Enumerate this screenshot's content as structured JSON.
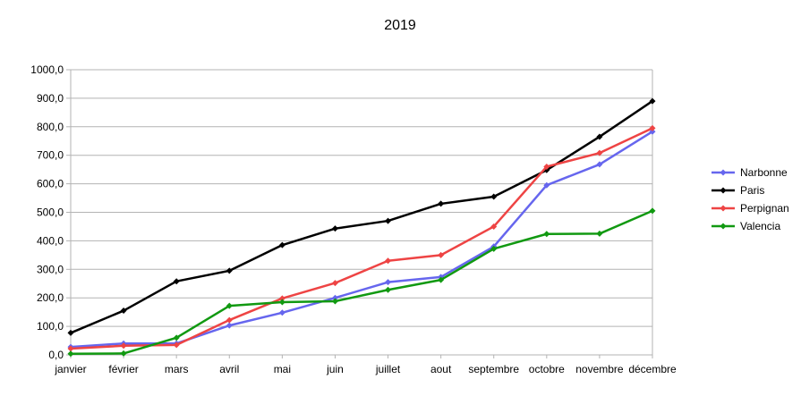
{
  "chart_data": {
    "type": "line",
    "title": "2019",
    "xlabel": "",
    "ylabel": "",
    "categories": [
      "janvier",
      "février",
      "mars",
      "avril",
      "mai",
      "juin",
      "juillet",
      "aout",
      "septembre",
      "octobre",
      "novembre",
      "décembre"
    ],
    "ylim": [
      0,
      1000
    ],
    "ytick_labels": [
      "0,0",
      "100,0",
      "200,0",
      "300,0",
      "400,0",
      "500,0",
      "600,0",
      "700,0",
      "800,0",
      "900,0",
      "1000,0"
    ],
    "grid": true,
    "legend_position": "right",
    "series": [
      {
        "name": "Narbonne",
        "color": "#6666ee",
        "values": [
          28,
          40,
          40,
          103,
          148,
          200,
          255,
          273,
          380,
          595,
          668,
          783
        ]
      },
      {
        "name": "Paris",
        "color": "#000000",
        "values": [
          77,
          155,
          258,
          295,
          385,
          443,
          470,
          530,
          555,
          648,
          765,
          890
        ]
      },
      {
        "name": "Perpignan",
        "color": "#ee4444",
        "values": [
          22,
          32,
          35,
          122,
          198,
          252,
          330,
          350,
          450,
          660,
          708,
          795
        ]
      },
      {
        "name": "Valencia",
        "color": "#119911",
        "values": [
          4,
          5,
          60,
          172,
          185,
          188,
          228,
          263,
          372,
          424,
          425,
          505
        ]
      }
    ]
  }
}
